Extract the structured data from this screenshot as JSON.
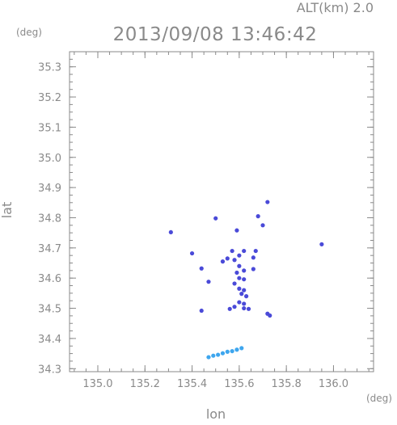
{
  "header": {
    "alt_label": "ALT(km)  2.0",
    "datetime": "2013/09/08 13:46:42"
  },
  "chart_data": {
    "type": "scatter",
    "title": "2013/09/08 13:46:42",
    "xlabel": "lon",
    "ylabel": "lat",
    "x_unit": "(deg)",
    "y_unit": "(deg)",
    "xlim": [
      134.88,
      136.17
    ],
    "ylim": [
      34.29,
      35.35
    ],
    "x_ticks": [
      135.0,
      135.2,
      135.4,
      135.6,
      135.8,
      136.0
    ],
    "x_tick_labels": [
      "135.0",
      "135.2",
      "135.4",
      "135.6",
      "135.8",
      "136.0"
    ],
    "y_ticks": [
      34.3,
      34.4,
      34.5,
      34.6,
      34.7,
      34.8,
      34.9,
      35.0,
      35.1,
      35.2,
      35.3
    ],
    "y_tick_labels": [
      "34.3",
      "34.4",
      "34.5",
      "34.6",
      "34.7",
      "34.8",
      "34.9",
      "35.0",
      "35.1",
      "35.2",
      "35.3"
    ],
    "minor_ticks_per_major": 4,
    "grid": false,
    "colors": {
      "frame": "#8a8a8a",
      "dark_echo": "#4a4ad8",
      "light_echo": "#3ea6ee"
    },
    "series": [
      {
        "color": "#4a4ad8",
        "points": [
          [
            135.31,
            34.752
          ],
          [
            135.5,
            34.798
          ],
          [
            135.68,
            34.805
          ],
          [
            135.72,
            34.852
          ],
          [
            135.7,
            34.775
          ],
          [
            135.59,
            34.758
          ],
          [
            135.4,
            34.682
          ],
          [
            135.44,
            34.632
          ],
          [
            135.47,
            34.588
          ],
          [
            135.95,
            34.712
          ],
          [
            135.53,
            34.655
          ],
          [
            135.55,
            34.665
          ],
          [
            135.57,
            34.69
          ],
          [
            135.58,
            34.66
          ],
          [
            135.6,
            34.675
          ],
          [
            135.62,
            34.69
          ],
          [
            135.67,
            34.69
          ],
          [
            135.66,
            34.668
          ],
          [
            135.6,
            34.64
          ],
          [
            135.62,
            34.625
          ],
          [
            135.59,
            34.618
          ],
          [
            135.66,
            34.63
          ],
          [
            135.6,
            34.6
          ],
          [
            135.62,
            34.596
          ],
          [
            135.58,
            34.582
          ],
          [
            135.6,
            34.565
          ],
          [
            135.62,
            34.56
          ],
          [
            135.61,
            34.548
          ],
          [
            135.63,
            34.54
          ],
          [
            135.6,
            34.52
          ],
          [
            135.62,
            34.515
          ],
          [
            135.58,
            34.505
          ],
          [
            135.56,
            34.498
          ],
          [
            135.62,
            34.5
          ],
          [
            135.64,
            34.498
          ],
          [
            135.72,
            34.482
          ],
          [
            135.73,
            34.476
          ],
          [
            135.44,
            34.492
          ]
        ]
      },
      {
        "color": "#3ea6ee",
        "points": [
          [
            135.47,
            34.338
          ],
          [
            135.49,
            34.343
          ],
          [
            135.51,
            34.346
          ],
          [
            135.53,
            34.351
          ],
          [
            135.55,
            34.356
          ],
          [
            135.57,
            34.358
          ],
          [
            135.59,
            34.363
          ],
          [
            135.61,
            34.368
          ]
        ]
      }
    ]
  }
}
